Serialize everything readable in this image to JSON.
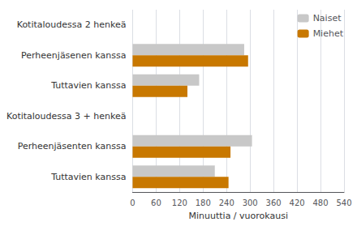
{
  "chart_data": {
    "type": "bar",
    "orientation": "horizontal",
    "categories": [
      "Kotitaloudessa 2 henkeä",
      "Perheenjäsenen kanssa",
      "Tuttavien kanssa",
      "Kotitaloudessa 3 + henkeä",
      "Perheenjäsenten kanssa",
      "Tuttavien kanssa"
    ],
    "series": [
      {
        "name": "Naiset",
        "color": "#c8c8c8",
        "values": [
          null,
          285,
          170,
          null,
          305,
          210
        ]
      },
      {
        "name": "Miehet",
        "color": "#c87800",
        "values": [
          null,
          295,
          140,
          null,
          250,
          245
        ]
      }
    ],
    "xlabel": "Minuuttia / vuorokausi",
    "xlim": [
      0,
      540
    ],
    "xticks": [
      0,
      60,
      120,
      180,
      240,
      300,
      360,
      420,
      480,
      540
    ],
    "grid": true,
    "legend": "upper right"
  }
}
